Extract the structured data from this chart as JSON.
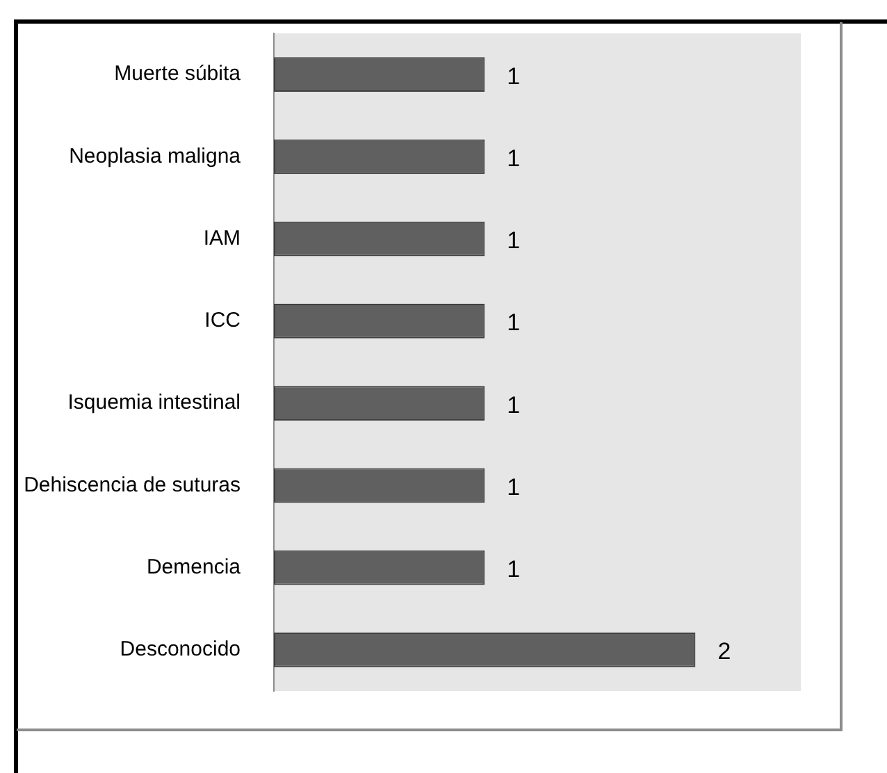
{
  "chart_data": {
    "type": "bar",
    "orientation": "horizontal",
    "categories": [
      "Muerte súbita",
      "Neoplasia maligna",
      "IAM",
      "ICC",
      "Isquemia intestinal",
      "Dehiscencia de suturas",
      "Demencia",
      "Desconocido"
    ],
    "values": [
      1,
      1,
      1,
      1,
      1,
      1,
      1,
      2
    ],
    "color": "#606060",
    "xlim": [
      0,
      2.5
    ],
    "data_labels": true,
    "tick_labels": "y"
  }
}
